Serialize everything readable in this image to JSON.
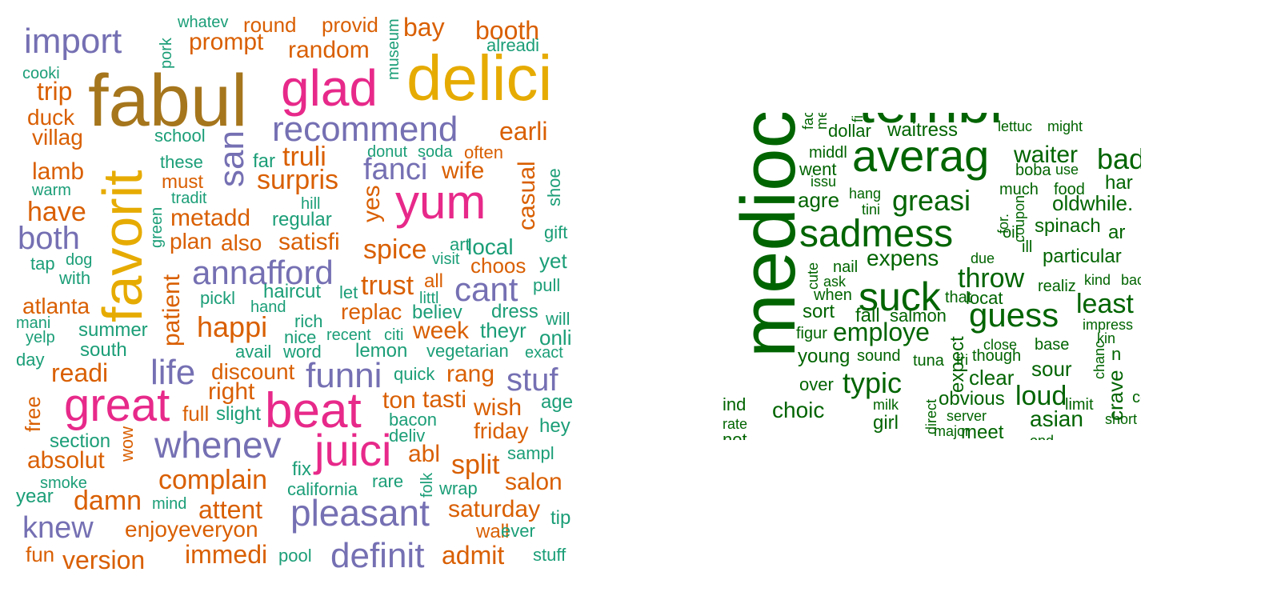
{
  "palette": {
    "purple": "#7570b3",
    "orange": "#d95f02",
    "green": "#1b9e77",
    "pink": "#e7298a",
    "olive": "#a6761d",
    "gold": "#e6ab02",
    "dark_green": "#006400"
  },
  "left_cloud": {
    "words": [
      {
        "t": "fabul",
        "c": "olive"
      },
      {
        "t": "delici",
        "c": "gold"
      },
      {
        "t": "favorit",
        "c": "gold"
      },
      {
        "t": "glad",
        "c": "pink"
      },
      {
        "t": "yum",
        "c": "pink"
      },
      {
        "t": "great",
        "c": "pink"
      },
      {
        "t": "beat",
        "c": "pink"
      },
      {
        "t": "juici",
        "c": "pink"
      },
      {
        "t": "import",
        "c": "purple"
      },
      {
        "t": "recommend",
        "c": "purple"
      },
      {
        "t": "fanci",
        "c": "purple"
      },
      {
        "t": "san",
        "c": "purple"
      },
      {
        "t": "both",
        "c": "purple"
      },
      {
        "t": "annafford",
        "c": "purple"
      },
      {
        "t": "cant",
        "c": "purple"
      },
      {
        "t": "life",
        "c": "purple"
      },
      {
        "t": "funni",
        "c": "purple"
      },
      {
        "t": "stuf",
        "c": "purple"
      },
      {
        "t": "whenev",
        "c": "purple"
      },
      {
        "t": "pleasant",
        "c": "purple"
      },
      {
        "t": "knew",
        "c": "purple"
      },
      {
        "t": "definit",
        "c": "purple"
      },
      {
        "t": "whatev",
        "c": "green"
      },
      {
        "t": "round",
        "c": "orange"
      },
      {
        "t": "provid",
        "c": "orange"
      },
      {
        "t": "bay",
        "c": "orange"
      },
      {
        "t": "booth",
        "c": "orange"
      },
      {
        "t": "pork",
        "c": "green"
      },
      {
        "t": "prompt",
        "c": "orange"
      },
      {
        "t": "random",
        "c": "orange"
      },
      {
        "t": "museum",
        "c": "green"
      },
      {
        "t": "alreadi",
        "c": "green"
      },
      {
        "t": "cooki",
        "c": "green"
      },
      {
        "t": "trip",
        "c": "orange"
      },
      {
        "t": "duck",
        "c": "orange"
      },
      {
        "t": "villag",
        "c": "orange"
      },
      {
        "t": "school",
        "c": "green"
      },
      {
        "t": "earli",
        "c": "orange"
      },
      {
        "t": "these",
        "c": "green"
      },
      {
        "t": "must",
        "c": "orange"
      },
      {
        "t": "far",
        "c": "green"
      },
      {
        "t": "truli",
        "c": "orange"
      },
      {
        "t": "donut",
        "c": "green"
      },
      {
        "t": "soda",
        "c": "green"
      },
      {
        "t": "often",
        "c": "orange"
      },
      {
        "t": "lamb",
        "c": "orange"
      },
      {
        "t": "warm",
        "c": "green"
      },
      {
        "t": "tradit",
        "c": "green"
      },
      {
        "t": "surpris",
        "c": "orange"
      },
      {
        "t": "wife",
        "c": "orange"
      },
      {
        "t": "casual",
        "c": "orange"
      },
      {
        "t": "shoe",
        "c": "green"
      },
      {
        "t": "hill",
        "c": "green"
      },
      {
        "t": "yes",
        "c": "orange"
      },
      {
        "t": "have",
        "c": "orange"
      },
      {
        "t": "green",
        "c": "green"
      },
      {
        "t": "metadd",
        "c": "orange"
      },
      {
        "t": "regular",
        "c": "green"
      },
      {
        "t": "gift",
        "c": "green"
      },
      {
        "t": "plan",
        "c": "orange"
      },
      {
        "t": "also",
        "c": "orange"
      },
      {
        "t": "satisfi",
        "c": "orange"
      },
      {
        "t": "art",
        "c": "green"
      },
      {
        "t": "local",
        "c": "green"
      },
      {
        "t": "spice",
        "c": "orange"
      },
      {
        "t": "visit",
        "c": "green"
      },
      {
        "t": "tap",
        "c": "green"
      },
      {
        "t": "dog",
        "c": "green"
      },
      {
        "t": "with",
        "c": "green"
      },
      {
        "t": "patient",
        "c": "orange"
      },
      {
        "t": "choos",
        "c": "orange"
      },
      {
        "t": "yet",
        "c": "green"
      },
      {
        "t": "haircut",
        "c": "green"
      },
      {
        "t": "trust",
        "c": "orange"
      },
      {
        "t": "all",
        "c": "orange"
      },
      {
        "t": "pull",
        "c": "green"
      },
      {
        "t": "pickl",
        "c": "green"
      },
      {
        "t": "let",
        "c": "green"
      },
      {
        "t": "littl",
        "c": "green"
      },
      {
        "t": "atlanta",
        "c": "orange"
      },
      {
        "t": "hand",
        "c": "green"
      },
      {
        "t": "replac",
        "c": "orange"
      },
      {
        "t": "believ",
        "c": "green"
      },
      {
        "t": "dress",
        "c": "green"
      },
      {
        "t": "will",
        "c": "green"
      },
      {
        "t": "mani",
        "c": "green"
      },
      {
        "t": "rich",
        "c": "green"
      },
      {
        "t": "summer",
        "c": "green"
      },
      {
        "t": "happi",
        "c": "orange"
      },
      {
        "t": "week",
        "c": "orange"
      },
      {
        "t": "theyr",
        "c": "green"
      },
      {
        "t": "onli",
        "c": "green"
      },
      {
        "t": "yelp",
        "c": "green"
      },
      {
        "t": "nice",
        "c": "green"
      },
      {
        "t": "recent",
        "c": "green"
      },
      {
        "t": "citi",
        "c": "green"
      },
      {
        "t": "south",
        "c": "green"
      },
      {
        "t": "avail",
        "c": "green"
      },
      {
        "t": "word",
        "c": "green"
      },
      {
        "t": "lemon",
        "c": "green"
      },
      {
        "t": "vegetarian",
        "c": "green"
      },
      {
        "t": "exact",
        "c": "green"
      },
      {
        "t": "day",
        "c": "green"
      },
      {
        "t": "discount",
        "c": "orange"
      },
      {
        "t": "quick",
        "c": "green"
      },
      {
        "t": "rang",
        "c": "orange"
      },
      {
        "t": "readi",
        "c": "orange"
      },
      {
        "t": "right",
        "c": "orange"
      },
      {
        "t": "ton",
        "c": "orange"
      },
      {
        "t": "tasti",
        "c": "orange"
      },
      {
        "t": "age",
        "c": "green"
      },
      {
        "t": "free",
        "c": "orange"
      },
      {
        "t": "full",
        "c": "orange"
      },
      {
        "t": "slight",
        "c": "green"
      },
      {
        "t": "wish",
        "c": "orange"
      },
      {
        "t": "bacon",
        "c": "green"
      },
      {
        "t": "hey",
        "c": "green"
      },
      {
        "t": "deliv",
        "c": "green"
      },
      {
        "t": "friday",
        "c": "orange"
      },
      {
        "t": "section",
        "c": "green"
      },
      {
        "t": "wow",
        "c": "orange"
      },
      {
        "t": "abl",
        "c": "orange"
      },
      {
        "t": "sampl",
        "c": "green"
      },
      {
        "t": "absolut",
        "c": "orange"
      },
      {
        "t": "split",
        "c": "orange"
      },
      {
        "t": "fix",
        "c": "green"
      },
      {
        "t": "complain",
        "c": "orange"
      },
      {
        "t": "smoke",
        "c": "green"
      },
      {
        "t": "folk",
        "c": "green"
      },
      {
        "t": "rare",
        "c": "green"
      },
      {
        "t": "salon",
        "c": "orange"
      },
      {
        "t": "california",
        "c": "green"
      },
      {
        "t": "wrap",
        "c": "green"
      },
      {
        "t": "year",
        "c": "green"
      },
      {
        "t": "damn",
        "c": "orange"
      },
      {
        "t": "mind",
        "c": "green"
      },
      {
        "t": "attent",
        "c": "orange"
      },
      {
        "t": "saturday",
        "c": "orange"
      },
      {
        "t": "tip",
        "c": "green"
      },
      {
        "t": "wall",
        "c": "orange"
      },
      {
        "t": "ever",
        "c": "green"
      },
      {
        "t": "enjoyeveryon",
        "c": "orange"
      },
      {
        "t": "fun",
        "c": "orange"
      },
      {
        "t": "version",
        "c": "orange"
      },
      {
        "t": "immedi",
        "c": "orange"
      },
      {
        "t": "pool",
        "c": "green"
      },
      {
        "t": "admit",
        "c": "orange"
      },
      {
        "t": "stuff",
        "c": "green"
      }
    ]
  },
  "right_cloud": {
    "color": "dark_green",
    "words": [
      "terribl",
      "mediocr",
      "averag",
      "sadmess",
      "suck",
      "guess",
      "fac",
      "mea",
      "fi",
      "dollar",
      "waitress",
      "lettuc",
      "might",
      "middl",
      "issu",
      "went",
      "waiter",
      "boba",
      "use",
      "bad",
      "food",
      "har",
      "agre",
      "hang",
      "tini",
      "greasi",
      "much",
      "oldwhile.",
      "for.",
      "coupon",
      "oil",
      "spinach",
      "ar",
      "cute",
      "nail",
      "expens",
      "ill",
      "due",
      "particular",
      "ask",
      "when",
      "throw",
      "realiz",
      "kind",
      "bac",
      "sort",
      "fall",
      "salmon",
      "that",
      "locat",
      "least",
      "impress",
      "figur",
      "employe",
      "expect",
      "kin",
      "close",
      "base",
      "chanc",
      "n",
      "young",
      "sound",
      "tuna",
      "fri",
      "though",
      "sour",
      "crave",
      "over",
      "typic",
      "clear",
      "direct",
      "loud",
      "ind",
      "milk",
      "obvious",
      "limit",
      "complet",
      "choic",
      "rate",
      "girl",
      "server",
      "asian",
      "short",
      "major",
      "meet",
      "ond",
      "not"
    ]
  }
}
